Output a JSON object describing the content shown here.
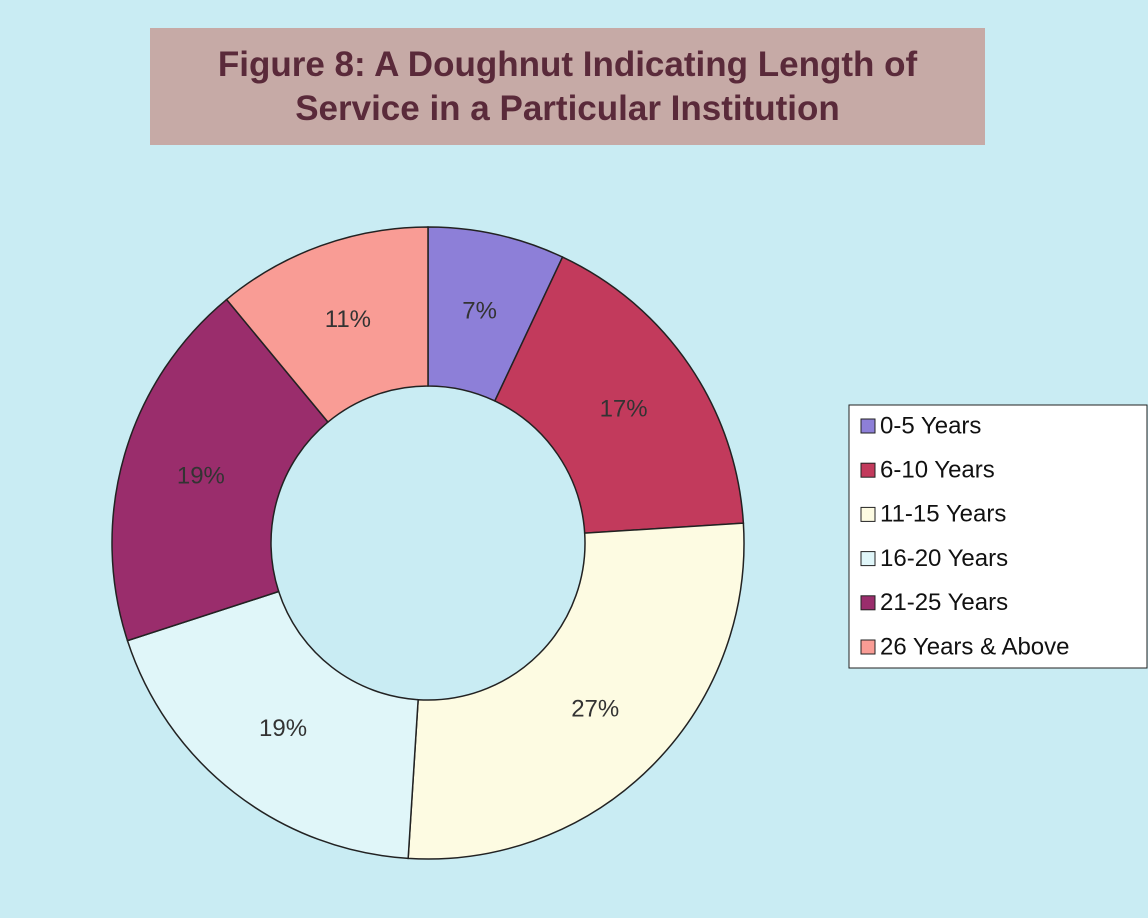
{
  "chart_data": {
    "type": "doughnut",
    "title": "Figure 8: A Doughnut Indicating Length of Service in a Particular Institution",
    "categories": [
      "0-5 Years",
      "6-10 Years",
      "11-15 Years",
      "16-20 Years",
      "21-25 Years",
      "26 Years & Above"
    ],
    "values": [
      7,
      17,
      27,
      19,
      19,
      11
    ],
    "value_labels": [
      "7%",
      "17%",
      "27%",
      "19%",
      "19%",
      "11%"
    ],
    "colors": [
      "#8d7fd8",
      "#c23a5c",
      "#fdfbe2",
      "#e0f6f9",
      "#9a2d6c",
      "#f99c95"
    ],
    "legend": "right"
  }
}
